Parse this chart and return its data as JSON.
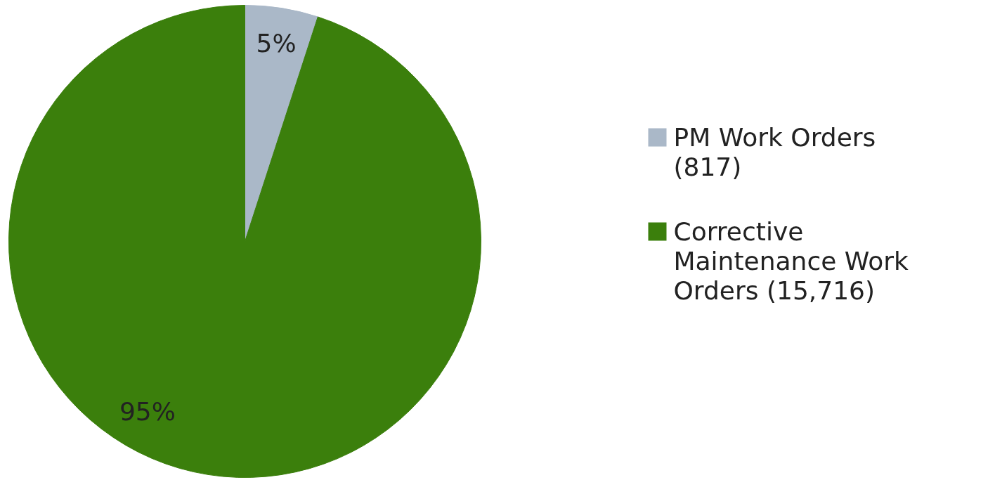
{
  "chart_data": {
    "type": "pie",
    "categories": [
      "PM Work Orders (817)",
      "Corrective Maintenance Work Orders (15,716)"
    ],
    "values": [
      5,
      95
    ],
    "colors": [
      "#aab8c8",
      "#3b7f0c"
    ],
    "value_labels": [
      "5%",
      "95%"
    ],
    "legend": "right"
  }
}
